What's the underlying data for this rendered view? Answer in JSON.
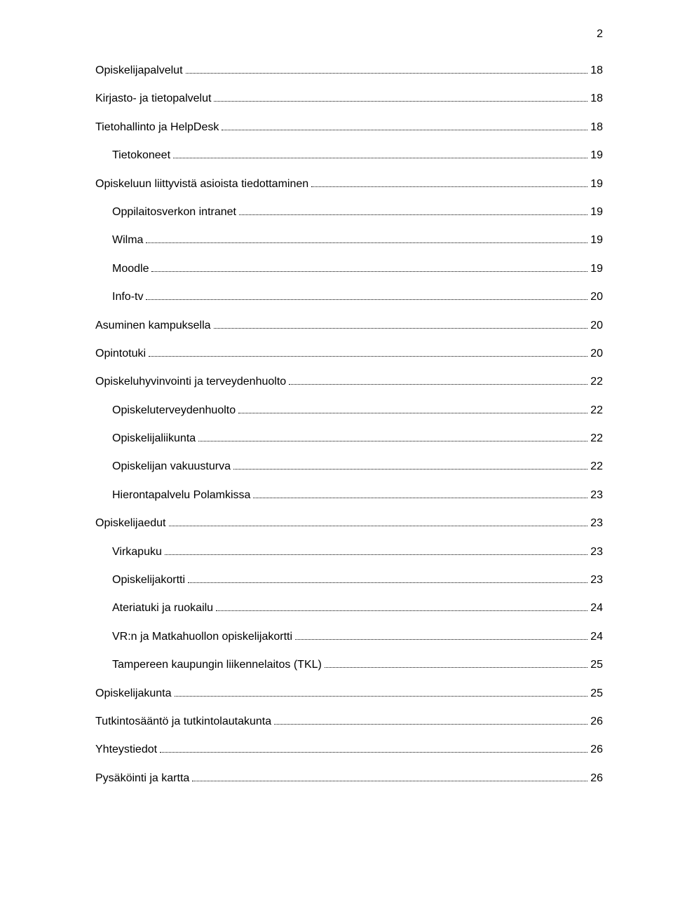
{
  "page_number": "2",
  "toc": [
    {
      "level": 1,
      "title": "Opiskelijapalvelut",
      "page": "18"
    },
    {
      "level": 1,
      "title": "Kirjasto- ja tietopalvelut",
      "page": "18"
    },
    {
      "level": 1,
      "title": "Tietohallinto ja HelpDesk",
      "page": "18"
    },
    {
      "level": 2,
      "title": "Tietokoneet",
      "page": "19"
    },
    {
      "level": 1,
      "title": "Opiskeluun liittyvistä asioista tiedottaminen",
      "page": "19"
    },
    {
      "level": 2,
      "title": "Oppilaitosverkon intranet",
      "page": "19"
    },
    {
      "level": 2,
      "title": "Wilma",
      "page": "19"
    },
    {
      "level": 2,
      "title": "Moodle",
      "page": "19"
    },
    {
      "level": 2,
      "title": "Info-tv",
      "page": "20"
    },
    {
      "level": 1,
      "title": "Asuminen kampuksella",
      "page": "20"
    },
    {
      "level": 1,
      "title": "Opintotuki",
      "page": "20"
    },
    {
      "level": 1,
      "title": "Opiskeluhyvinvointi ja terveydenhuolto",
      "page": "22"
    },
    {
      "level": 2,
      "title": "Opiskeluterveydenhuolto",
      "page": "22"
    },
    {
      "level": 2,
      "title": "Opiskelijaliikunta",
      "page": "22"
    },
    {
      "level": 2,
      "title": "Opiskelijan vakuusturva",
      "page": "22"
    },
    {
      "level": 2,
      "title": "Hierontapalvelu Polamkissa",
      "page": "23"
    },
    {
      "level": 1,
      "title": "Opiskelijaedut",
      "page": "23"
    },
    {
      "level": 2,
      "title": "Virkapuku",
      "page": "23"
    },
    {
      "level": 2,
      "title": "Opiskelijakortti",
      "page": "23"
    },
    {
      "level": 2,
      "title": "Ateriatuki ja ruokailu",
      "page": "24"
    },
    {
      "level": 2,
      "title": "VR:n ja Matkahuollon opiskelijakortti",
      "page": "24"
    },
    {
      "level": 2,
      "title": "Tampereen kaupungin liikennelaitos (TKL)",
      "page": "25"
    },
    {
      "level": 1,
      "title": "Opiskelijakunta",
      "page": "25"
    },
    {
      "level": 1,
      "title": "Tutkintosääntö ja tutkintolautakunta",
      "page": "26"
    },
    {
      "level": 1,
      "title": "Yhteystiedot",
      "page": "26"
    },
    {
      "level": 1,
      "title": "Pysäköinti ja kartta",
      "page": "26"
    }
  ]
}
